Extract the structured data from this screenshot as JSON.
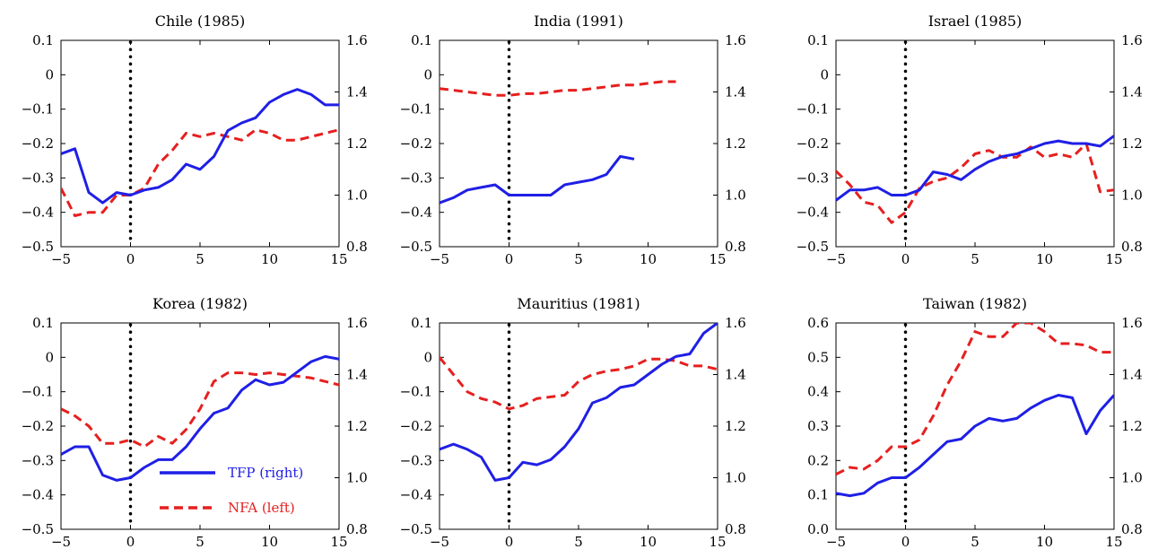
{
  "colors": {
    "tfp": "#1f1fe6",
    "nfa": "#e61f1f",
    "event_line": "#000000"
  },
  "legend": {
    "items": [
      {
        "label": "TFP (right)",
        "color": "#1f1fe6",
        "style": "solid"
      },
      {
        "label": "NFA (left)",
        "color": "#e61f1f",
        "style": "dashed"
      }
    ],
    "panel": 3,
    "placement": "bottom-center"
  },
  "chart_data": [
    {
      "type": "line",
      "title": "Chile (1985)",
      "xlim": [
        -5,
        15
      ],
      "ylim_left": [
        -0.5,
        0.1
      ],
      "ylim_right": [
        0.8,
        1.6
      ],
      "xticks": [
        -5,
        0,
        5,
        10,
        15
      ],
      "xtick_labels": [
        "−5",
        "0",
        "5",
        "10",
        "15"
      ],
      "yticks_left": [
        -0.5,
        -0.4,
        -0.3,
        -0.2,
        -0.1,
        0,
        0.1
      ],
      "ytick_labels_left": [
        "−0.5",
        "−0.4",
        "−0.3",
        "−0.2",
        "−0.1",
        "0",
        "0.1"
      ],
      "yticks_right": [
        0.8,
        1.0,
        1.2,
        1.4,
        1.6
      ],
      "ytick_labels_right": [
        "0.8",
        "1.0",
        "1.2",
        "1.4",
        "1.6"
      ],
      "event_x": 0,
      "series": [
        {
          "name": "TFP (right)",
          "axis": "right",
          "x": [
            -5,
            -4,
            -3,
            -2,
            -1,
            0,
            1,
            2,
            3,
            4,
            5,
            6,
            7,
            8,
            9,
            10,
            11,
            12,
            13,
            14,
            15
          ],
          "y": [
            1.16,
            1.18,
            1.01,
            0.97,
            1.01,
            1.0,
            1.02,
            1.03,
            1.06,
            1.12,
            1.1,
            1.15,
            1.25,
            1.28,
            1.3,
            1.36,
            1.39,
            1.41,
            1.39,
            1.35,
            1.35
          ]
        },
        {
          "name": "NFA (left)",
          "axis": "left",
          "x": [
            -5,
            -4,
            -3,
            -2,
            -1,
            0,
            1,
            2,
            3,
            4,
            5,
            6,
            7,
            8,
            9,
            10,
            11,
            12,
            13,
            14,
            15
          ],
          "y": [
            -0.33,
            -0.41,
            -0.4,
            -0.4,
            -0.35,
            -0.35,
            -0.33,
            -0.26,
            -0.22,
            -0.17,
            -0.18,
            -0.17,
            -0.18,
            -0.19,
            -0.16,
            -0.17,
            -0.19,
            -0.19,
            -0.18,
            -0.17,
            -0.16
          ]
        }
      ]
    },
    {
      "type": "line",
      "title": "India (1991)",
      "xlim": [
        -5,
        15
      ],
      "ylim_left": [
        -0.5,
        0.1
      ],
      "ylim_right": [
        0.8,
        1.6
      ],
      "xticks": [
        -5,
        0,
        5,
        10,
        15
      ],
      "xtick_labels": [
        "−5",
        "0",
        "5",
        "10",
        "15"
      ],
      "yticks_left": [
        -0.5,
        -0.4,
        -0.3,
        -0.2,
        -0.1,
        0,
        0.1
      ],
      "ytick_labels_left": [
        "−0.5",
        "−0.4",
        "−0.3",
        "−0.2",
        "−0.1",
        "0",
        "0.1"
      ],
      "yticks_right": [
        0.8,
        1.0,
        1.2,
        1.4,
        1.6
      ],
      "ytick_labels_right": [
        "0.8",
        "1.0",
        "1.2",
        "1.4",
        "1.6"
      ],
      "event_x": 0,
      "series": [
        {
          "name": "TFP (right)",
          "axis": "right",
          "x": [
            -5,
            -4,
            -3,
            -2,
            -1,
            0,
            1,
            2,
            3,
            4,
            5,
            6,
            7,
            8,
            9
          ],
          "y": [
            0.97,
            0.99,
            1.02,
            1.03,
            1.04,
            1.0,
            1.0,
            1.0,
            1.0,
            1.04,
            1.05,
            1.06,
            1.08,
            1.15,
            1.14
          ]
        },
        {
          "name": "NFA (left)",
          "axis": "left",
          "x": [
            -5,
            -4,
            -3,
            -2,
            -1,
            0,
            1,
            2,
            3,
            4,
            5,
            6,
            7,
            8,
            9,
            10,
            11,
            12
          ],
          "y": [
            -0.04,
            -0.045,
            -0.05,
            -0.055,
            -0.06,
            -0.06,
            -0.055,
            -0.055,
            -0.05,
            -0.045,
            -0.045,
            -0.04,
            -0.035,
            -0.03,
            -0.03,
            -0.025,
            -0.02,
            -0.02
          ]
        }
      ]
    },
    {
      "type": "line",
      "title": "Israel (1985)",
      "xlim": [
        -5,
        15
      ],
      "ylim_left": [
        -0.5,
        0.1
      ],
      "ylim_right": [
        0.8,
        1.6
      ],
      "xticks": [
        -5,
        0,
        5,
        10,
        15
      ],
      "xtick_labels": [
        "−5",
        "0",
        "5",
        "10",
        "15"
      ],
      "yticks_left": [
        -0.5,
        -0.4,
        -0.3,
        -0.2,
        -0.1,
        0,
        0.1
      ],
      "ytick_labels_left": [
        "−0.5",
        "−0.4",
        "−0.3",
        "−0.2",
        "−0.1",
        "0",
        "0.1"
      ],
      "yticks_right": [
        0.8,
        1.0,
        1.2,
        1.4,
        1.6
      ],
      "ytick_labels_right": [
        "0.8",
        "1.0",
        "1.2",
        "1.4",
        "1.6"
      ],
      "event_x": 0,
      "series": [
        {
          "name": "TFP (right)",
          "axis": "right",
          "x": [
            -5,
            -4,
            -3,
            -2,
            -1,
            0,
            1,
            2,
            3,
            4,
            5,
            6,
            7,
            8,
            9,
            10,
            11,
            12,
            13,
            14,
            15
          ],
          "y": [
            0.98,
            1.02,
            1.02,
            1.03,
            1.0,
            1.0,
            1.02,
            1.09,
            1.08,
            1.06,
            1.1,
            1.13,
            1.15,
            1.16,
            1.18,
            1.2,
            1.21,
            1.2,
            1.2,
            1.19,
            1.23
          ]
        },
        {
          "name": "NFA (left)",
          "axis": "left",
          "x": [
            -5,
            -4,
            -3,
            -2,
            -1,
            0,
            1,
            2,
            3,
            4,
            5,
            6,
            7,
            8,
            9,
            10,
            11,
            12,
            13,
            14,
            15
          ],
          "y": [
            -0.28,
            -0.32,
            -0.37,
            -0.38,
            -0.43,
            -0.4,
            -0.33,
            -0.31,
            -0.3,
            -0.27,
            -0.23,
            -0.22,
            -0.24,
            -0.24,
            -0.21,
            -0.24,
            -0.23,
            -0.24,
            -0.2,
            -0.34,
            -0.335
          ]
        }
      ]
    },
    {
      "type": "line",
      "title": "Korea (1982)",
      "xlim": [
        -5,
        15
      ],
      "ylim_left": [
        -0.5,
        0.1
      ],
      "ylim_right": [
        0.8,
        1.6
      ],
      "xticks": [
        -5,
        0,
        5,
        10,
        15
      ],
      "xtick_labels": [
        "−5",
        "0",
        "5",
        "10",
        "15"
      ],
      "yticks_left": [
        -0.5,
        -0.4,
        -0.3,
        -0.2,
        -0.1,
        0,
        0.1
      ],
      "ytick_labels_left": [
        "−0.5",
        "−0.4",
        "−0.3",
        "−0.2",
        "−0.1",
        "0",
        "0.1"
      ],
      "yticks_right": [
        0.8,
        1.0,
        1.2,
        1.4,
        1.6
      ],
      "ytick_labels_right": [
        "0.8",
        "1.0",
        "1.2",
        "1.4",
        "1.6"
      ],
      "event_x": 0,
      "series": [
        {
          "name": "TFP (right)",
          "axis": "right",
          "x": [
            -5,
            -4,
            -3,
            -2,
            -1,
            0,
            1,
            2,
            3,
            4,
            5,
            6,
            7,
            8,
            9,
            10,
            11,
            12,
            13,
            14,
            15
          ],
          "y": [
            1.09,
            1.12,
            1.12,
            1.01,
            0.99,
            1.0,
            1.04,
            1.07,
            1.07,
            1.12,
            1.19,
            1.25,
            1.27,
            1.34,
            1.38,
            1.36,
            1.37,
            1.41,
            1.45,
            1.47,
            1.46
          ]
        },
        {
          "name": "NFA (left)",
          "axis": "left",
          "x": [
            -5,
            -4,
            -3,
            -2,
            -1,
            0,
            1,
            2,
            3,
            4,
            5,
            6,
            7,
            8,
            9,
            10,
            11,
            12,
            13,
            14,
            15
          ],
          "y": [
            -0.15,
            -0.17,
            -0.2,
            -0.25,
            -0.25,
            -0.24,
            -0.26,
            -0.23,
            -0.25,
            -0.21,
            -0.15,
            -0.07,
            -0.045,
            -0.045,
            -0.05,
            -0.045,
            -0.05,
            -0.055,
            -0.06,
            -0.07,
            -0.08
          ]
        }
      ]
    },
    {
      "type": "line",
      "title": "Mauritius (1981)",
      "xlim": [
        -5,
        15
      ],
      "ylim_left": [
        -0.5,
        0.1
      ],
      "ylim_right": [
        0.8,
        1.6
      ],
      "xticks": [
        -5,
        0,
        5,
        10,
        15
      ],
      "xtick_labels": [
        "−5",
        "0",
        "5",
        "10",
        "15"
      ],
      "yticks_left": [
        -0.5,
        -0.4,
        -0.3,
        -0.2,
        -0.1,
        0,
        0.1
      ],
      "ytick_labels_left": [
        "−0.5",
        "−0.4",
        "−0.3",
        "−0.2",
        "−0.1",
        "0",
        "0.1"
      ],
      "yticks_right": [
        0.8,
        1.0,
        1.2,
        1.4,
        1.6
      ],
      "ytick_labels_right": [
        "0.8",
        "1.0",
        "1.2",
        "1.4",
        "1.6"
      ],
      "event_x": 0,
      "series": [
        {
          "name": "TFP (right)",
          "axis": "right",
          "x": [
            -5,
            -4,
            -3,
            -2,
            -1,
            0,
            1,
            2,
            3,
            4,
            5,
            6,
            7,
            8,
            9,
            10,
            11,
            12,
            13,
            14,
            15
          ],
          "y": [
            1.11,
            1.13,
            1.11,
            1.08,
            0.99,
            1.0,
            1.06,
            1.05,
            1.07,
            1.12,
            1.19,
            1.29,
            1.31,
            1.35,
            1.36,
            1.4,
            1.44,
            1.47,
            1.48,
            1.56,
            1.6
          ]
        },
        {
          "name": "NFA (left)",
          "axis": "left",
          "x": [
            -5,
            -4,
            -3,
            -2,
            -1,
            0,
            1,
            2,
            3,
            4,
            5,
            6,
            7,
            8,
            9,
            10,
            11,
            12,
            13,
            14,
            15
          ],
          "y": [
            0.0,
            -0.05,
            -0.1,
            -0.12,
            -0.13,
            -0.15,
            -0.14,
            -0.12,
            -0.115,
            -0.11,
            -0.07,
            -0.05,
            -0.04,
            -0.035,
            -0.025,
            -0.005,
            -0.005,
            -0.01,
            -0.025,
            -0.025,
            -0.035
          ]
        }
      ]
    },
    {
      "type": "line",
      "title": "Taiwan (1982)",
      "xlim": [
        -5,
        15
      ],
      "ylim_left": [
        0.0,
        0.6
      ],
      "ylim_right": [
        0.8,
        1.6
      ],
      "xticks": [
        -5,
        0,
        5,
        10,
        15
      ],
      "xtick_labels": [
        "−5",
        "0",
        "5",
        "10",
        "15"
      ],
      "yticks_left": [
        0.0,
        0.1,
        0.2,
        0.3,
        0.4,
        0.5,
        0.6
      ],
      "ytick_labels_left": [
        "0.0",
        "0.1",
        "0.2",
        "0.3",
        "0.4",
        "0.5",
        "0.6"
      ],
      "yticks_right": [
        0.8,
        1.0,
        1.2,
        1.4,
        1.6
      ],
      "ytick_labels_right": [
        "0.8",
        "1.0",
        "1.2",
        "1.4",
        "1.6"
      ],
      "event_x": 0,
      "series": [
        {
          "name": "TFP (right)",
          "axis": "right",
          "x": [
            -5,
            -4,
            -3,
            -2,
            -1,
            0,
            1,
            2,
            3,
            4,
            5,
            6,
            7,
            8,
            9,
            10,
            11,
            12,
            13,
            14,
            15
          ],
          "y": [
            0.94,
            0.93,
            0.94,
            0.98,
            1.0,
            1.0,
            1.04,
            1.09,
            1.14,
            1.15,
            1.2,
            1.23,
            1.22,
            1.23,
            1.27,
            1.3,
            1.32,
            1.31,
            1.17,
            1.26,
            1.32
          ]
        },
        {
          "name": "NFA (left)",
          "axis": "left",
          "x": [
            -5,
            -4,
            -3,
            -2,
            -1,
            0,
            1,
            2,
            3,
            4,
            5,
            6,
            7,
            8,
            9,
            10,
            11,
            12,
            13,
            14,
            15
          ],
          "y": [
            0.16,
            0.18,
            0.175,
            0.2,
            0.24,
            0.24,
            0.26,
            0.33,
            0.42,
            0.49,
            0.575,
            0.56,
            0.56,
            0.6,
            0.6,
            0.575,
            0.54,
            0.54,
            0.535,
            0.515,
            0.515
          ]
        }
      ]
    }
  ]
}
